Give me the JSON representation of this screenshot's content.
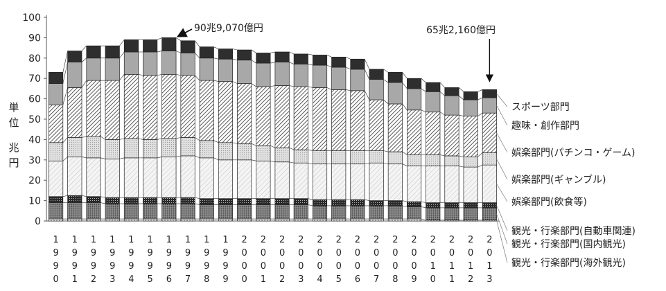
{
  "chart_data": {
    "type": "bar",
    "stacked": true,
    "categories": [
      "1990",
      "1991",
      "1992",
      "1993",
      "1994",
      "1995",
      "1996",
      "1997",
      "1998",
      "1999",
      "2000",
      "2001",
      "2002",
      "2003",
      "2004",
      "2005",
      "2006",
      "2007",
      "2008",
      "2009",
      "2010",
      "2011",
      "2012",
      "2013"
    ],
    "ylim": [
      0,
      100
    ],
    "yticks": [
      0,
      10,
      20,
      30,
      40,
      50,
      60,
      70,
      80,
      90,
      100
    ],
    "ylabel": "単位 兆円",
    "grid": false,
    "series": [
      {
        "name": "観光・行楽部門(海外観光)",
        "pattern": "dots-white",
        "values": [
          1,
          1,
          1,
          1,
          1,
          1,
          1,
          1,
          1,
          1,
          1,
          1,
          1,
          1,
          1,
          1,
          1,
          1,
          1,
          1,
          0.5,
          0.5,
          0.5,
          0.5
        ]
      },
      {
        "name": "観光・行楽部門(国内観光)",
        "pattern": "dots-dark",
        "values": [
          8,
          8,
          8,
          7.5,
          7.5,
          7.5,
          7.5,
          7.5,
          7,
          7,
          7,
          7,
          7,
          7,
          6.5,
          6.5,
          6.5,
          6.5,
          6.5,
          6,
          6,
          6,
          6,
          6
        ]
      },
      {
        "name": "観光・行楽部門(自動車関連)",
        "pattern": "cross-dark",
        "values": [
          3,
          3.5,
          3,
          3,
          3,
          3,
          3,
          3,
          3,
          3,
          3,
          3,
          3,
          3,
          3,
          3,
          3,
          2.5,
          2.5,
          2.5,
          2.5,
          2.5,
          2.5,
          2.5
        ]
      },
      {
        "name": "娯楽部門(飲食等)",
        "pattern": "hatch-light",
        "values": [
          17.5,
          19,
          19,
          19,
          19.5,
          19.5,
          20,
          20.5,
          20,
          19,
          19,
          18.5,
          18,
          17.5,
          17.5,
          17.5,
          17.5,
          18.5,
          18,
          17.5,
          18,
          18,
          17.5,
          18.5
        ]
      },
      {
        "name": "娯楽部門(ギャンブル)",
        "pattern": "dots-light",
        "values": [
          9,
          9.5,
          10.5,
          9.5,
          9.5,
          9,
          9,
          9,
          8.5,
          8.5,
          8,
          7.5,
          7,
          6.5,
          6.5,
          6.5,
          6.5,
          6,
          6,
          5.5,
          5.5,
          5,
          5,
          6
        ]
      },
      {
        "name": "娯楽部門(パチンコ・ゲーム)",
        "pattern": "hatch-dark",
        "values": [
          18.5,
          24.5,
          27.5,
          29,
          31.5,
          31.5,
          31.5,
          30.5,
          29.5,
          30,
          29.5,
          29,
          30.5,
          31,
          31,
          30,
          29.5,
          25,
          23.5,
          22,
          21,
          20,
          20,
          19.5
        ]
      },
      {
        "name": "趣味・創作部門",
        "pattern": "gray",
        "values": [
          10.5,
          12.5,
          11,
          11,
          11,
          11.5,
          11.5,
          11,
          11,
          11,
          11.5,
          11.5,
          11.5,
          11,
          11,
          11,
          10.5,
          10,
          10.5,
          10.5,
          10,
          9.5,
          8,
          7.5
        ]
      },
      {
        "name": "スポーツ部門",
        "pattern": "dark",
        "values": [
          5.5,
          5.5,
          6,
          6,
          6,
          6,
          6.5,
          6,
          5.5,
          5,
          5,
          5,
          5,
          5,
          5,
          5,
          5,
          5,
          5,
          5,
          4.5,
          4,
          4,
          4
        ]
      }
    ],
    "totals": [
      73,
      82,
      86,
      87,
      89.5,
      90.5,
      90.5,
      89,
      86.5,
      85.5,
      85.5,
      83,
      83,
      82,
      81,
      80,
      79,
      74.5,
      72.5,
      69.5,
      67,
      64.5,
      64.5,
      65
    ],
    "annotations": [
      {
        "text": "90兆9,070億円",
        "category": "1996",
        "arrow": "left"
      },
      {
        "text": "65兆2,160億円",
        "category": "2013",
        "arrow": "down"
      }
    ]
  }
}
